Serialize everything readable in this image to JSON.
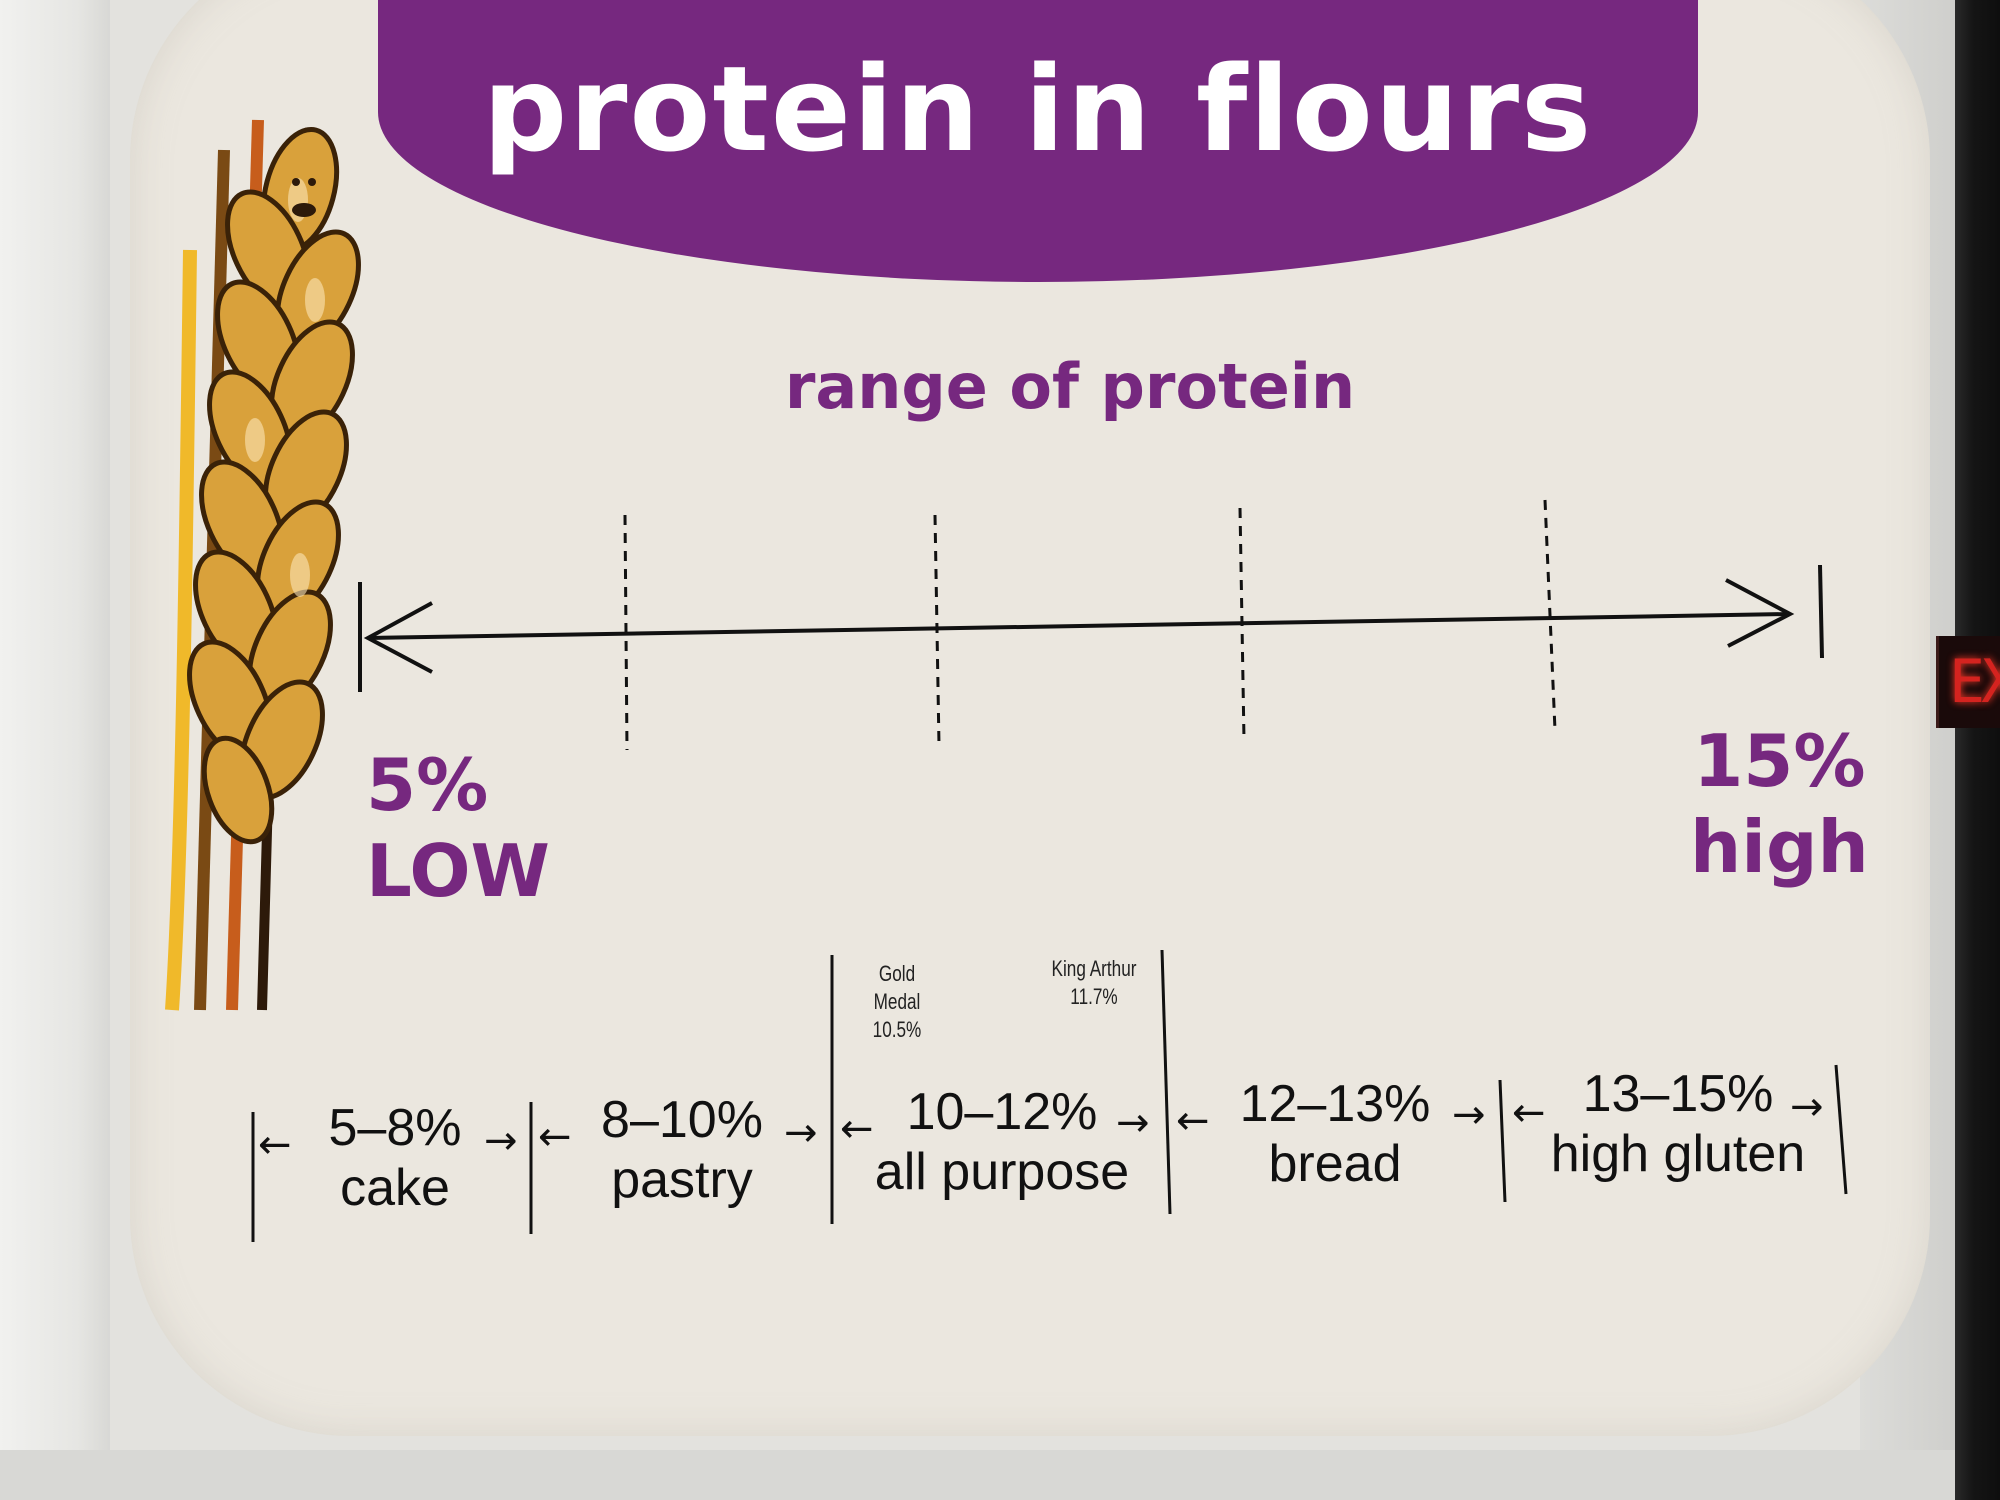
{
  "poster": {
    "title": "protein in flours",
    "subtitle": "range of protein",
    "low_label_pct": "5%",
    "low_label_word": "LOW",
    "high_label_pct": "15%",
    "high_label_word": "high",
    "brand_notes": [
      {
        "brand": "Gold Medal",
        "value": "10.5%"
      },
      {
        "brand": "King Arthur",
        "value": "11.7%"
      }
    ],
    "ranges": [
      {
        "pct": "5–8%",
        "name": "cake"
      },
      {
        "pct": "8–10%",
        "name": "pastry"
      },
      {
        "pct": "10–12%",
        "name": "all purpose"
      },
      {
        "pct": "12–13%",
        "name": "bread"
      },
      {
        "pct": "13–15%",
        "name": "high gluten"
      }
    ],
    "exit_sign_text": "EXIT"
  },
  "colors": {
    "title_bg": "#76287f",
    "accent_text": "#76287f",
    "poster_bg": "#ebe7df",
    "wheat_gold": "#d9a13b",
    "wheat_brown": "#7a4a14"
  },
  "icons": [
    "wheat-illustration",
    "double-arrow-scale"
  ]
}
